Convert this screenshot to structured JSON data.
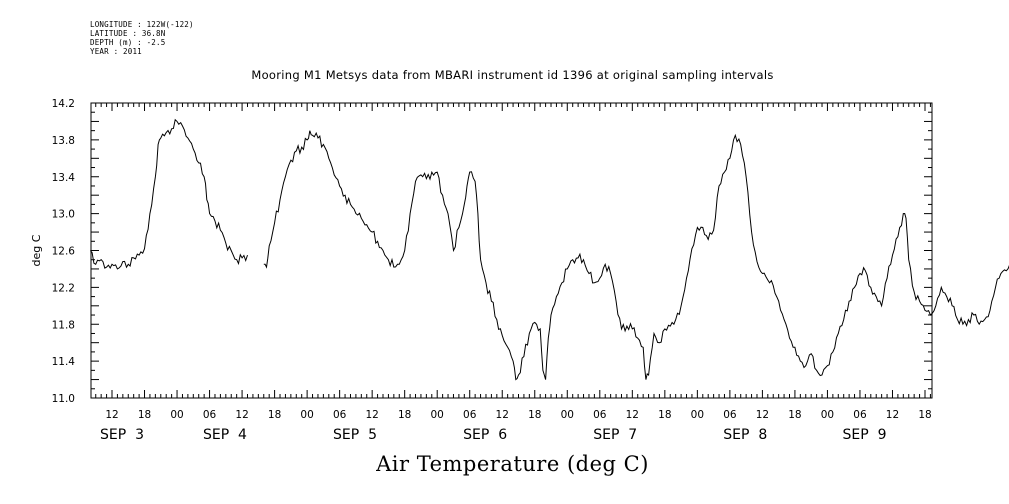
{
  "meta": {
    "longitude": "LONGITUDE : 122W(-122)",
    "latitude": "LATITUDE : 36.8N",
    "depth": "DEPTH (m) : -2.5",
    "year": "YEAR : 2011"
  },
  "chart_data": {
    "type": "line",
    "title": "Mooring M1 Metsys data from MBARI instrument id 1396 at original sampling intervals",
    "xlabel": "Air Temperature (deg C)",
    "ylabel": "deg C",
    "ylim": [
      11.0,
      14.2
    ],
    "xlim_hours": [
      8,
      164
    ],
    "yticks": [
      "11.0",
      "11.4",
      "11.8",
      "12.2",
      "12.6",
      "13.0",
      "13.4",
      "13.8",
      "14.2"
    ],
    "xticks": [
      {
        "hour": 12,
        "label": "12"
      },
      {
        "hour": 18,
        "label": "18"
      },
      {
        "hour": 24,
        "label": "00"
      },
      {
        "hour": 30,
        "label": "06"
      },
      {
        "hour": 36,
        "label": "12"
      },
      {
        "hour": 42,
        "label": "18"
      },
      {
        "hour": 48,
        "label": "00"
      },
      {
        "hour": 54,
        "label": "06"
      },
      {
        "hour": 60,
        "label": "12"
      },
      {
        "hour": 66,
        "label": "18"
      },
      {
        "hour": 72,
        "label": "00"
      },
      {
        "hour": 78,
        "label": "06"
      },
      {
        "hour": 84,
        "label": "12"
      },
      {
        "hour": 90,
        "label": "18"
      },
      {
        "hour": 96,
        "label": "00"
      },
      {
        "hour": 102,
        "label": "06"
      },
      {
        "hour": 108,
        "label": "12"
      },
      {
        "hour": 114,
        "label": "18"
      },
      {
        "hour": 120,
        "label": "00"
      },
      {
        "hour": 126,
        "label": "06"
      },
      {
        "hour": 132,
        "label": "12"
      },
      {
        "hour": 138,
        "label": "18"
      },
      {
        "hour": 144,
        "label": "00"
      },
      {
        "hour": 150,
        "label": "06"
      },
      {
        "hour": 156,
        "label": "12"
      },
      {
        "hour": 162,
        "label": "18"
      }
    ],
    "day_labels": [
      {
        "hour": 12,
        "label": "SEP  3"
      },
      {
        "hour": 31,
        "label": "SEP  4"
      },
      {
        "hour": 55,
        "label": "SEP  5"
      },
      {
        "hour": 79,
        "label": "SEP  6"
      },
      {
        "hour": 103,
        "label": "SEP  7"
      },
      {
        "hour": 127,
        "label": "SEP  8"
      },
      {
        "hour": 149,
        "label": "SEP  9"
      }
    ],
    "series": [
      {
        "color": "#000000",
        "segments": [
          [
            [
              8,
              12.6
            ],
            [
              9,
              12.45
            ],
            [
              10,
              12.5
            ],
            [
              11,
              12.42
            ],
            [
              12,
              12.45
            ],
            [
              13,
              12.4
            ],
            [
              14,
              12.48
            ],
            [
              15,
              12.45
            ],
            [
              16,
              12.52
            ],
            [
              17,
              12.55
            ],
            [
              18,
              12.62
            ],
            [
              19,
              13.0
            ],
            [
              20,
              13.4
            ],
            [
              20.5,
              13.75
            ],
            [
              21,
              13.82
            ],
            [
              22,
              13.88
            ],
            [
              23,
              13.92
            ],
            [
              24,
              14.0
            ],
            [
              25,
              13.95
            ],
            [
              26,
              13.82
            ],
            [
              27,
              13.7
            ],
            [
              28,
              13.55
            ],
            [
              29,
              13.4
            ],
            [
              29.5,
              13.15
            ],
            [
              30,
              13.0
            ],
            [
              31,
              12.92
            ],
            [
              32,
              12.82
            ],
            [
              33,
              12.68
            ],
            [
              34,
              12.6
            ],
            [
              35,
              12.5
            ],
            [
              36,
              12.52
            ],
            [
              37,
              12.55
            ]
          ],
          [
            [
              40,
              12.45
            ],
            [
              40.5,
              12.42
            ],
            [
              41,
              12.65
            ],
            [
              42,
              12.9
            ],
            [
              43,
              13.15
            ],
            [
              44,
              13.4
            ],
            [
              45,
              13.58
            ],
            [
              46,
              13.68
            ],
            [
              47,
              13.72
            ],
            [
              48,
              13.8
            ],
            [
              48.5,
              13.9
            ],
            [
              49,
              13.85
            ],
            [
              50,
              13.82
            ],
            [
              51,
              13.75
            ],
            [
              52,
              13.6
            ],
            [
              53,
              13.42
            ],
            [
              54,
              13.3
            ],
            [
              55,
              13.2
            ],
            [
              56,
              13.1
            ],
            [
              57,
              13.0
            ],
            [
              58,
              12.95
            ],
            [
              59,
              12.88
            ],
            [
              60,
              12.8
            ],
            [
              61,
              12.7
            ],
            [
              62,
              12.6
            ],
            [
              63,
              12.5
            ],
            [
              64,
              12.42
            ],
            [
              65,
              12.45
            ],
            [
              66,
              12.6
            ],
            [
              67,
              13.0
            ],
            [
              68,
              13.35
            ],
            [
              69,
              13.42
            ],
            [
              70,
              13.38
            ],
            [
              71,
              13.45
            ],
            [
              72,
              13.45
            ],
            [
              73,
              13.2
            ],
            [
              74,
              13.0
            ],
            [
              75,
              12.6
            ],
            [
              76,
              12.85
            ],
            [
              77,
              13.1
            ],
            [
              77.5,
              13.3
            ],
            [
              78,
              13.45
            ],
            [
              79,
              13.35
            ],
            [
              79.5,
              13.0
            ],
            [
              80,
              12.5
            ],
            [
              81,
              12.25
            ],
            [
              82,
              12.05
            ],
            [
              83,
              11.85
            ],
            [
              84,
              11.68
            ],
            [
              85,
              11.55
            ],
            [
              86,
              11.4
            ],
            [
              86.5,
              11.2
            ],
            [
              87,
              11.25
            ],
            [
              88,
              11.45
            ],
            [
              89,
              11.7
            ],
            [
              90,
              11.82
            ],
            [
              91,
              11.75
            ],
            [
              91.5,
              11.3
            ],
            [
              92,
              11.2
            ],
            [
              92.5,
              11.65
            ],
            [
              93,
              11.9
            ],
            [
              94,
              12.1
            ],
            [
              95,
              12.25
            ],
            [
              96,
              12.4
            ],
            [
              97,
              12.5
            ],
            [
              98,
              12.52
            ],
            [
              99,
              12.5
            ],
            [
              100,
              12.35
            ],
            [
              101,
              12.25
            ],
            [
              102,
              12.3
            ],
            [
              103,
              12.45
            ],
            [
              104,
              12.35
            ],
            [
              105,
              12.05
            ],
            [
              106,
              11.75
            ],
            [
              107,
              11.78
            ],
            [
              108,
              11.75
            ],
            [
              109,
              11.65
            ],
            [
              110,
              11.55
            ],
            [
              110.5,
              11.2
            ],
            [
              111,
              11.25
            ],
            [
              112,
              11.7
            ],
            [
              113,
              11.6
            ],
            [
              114,
              11.75
            ],
            [
              115,
              11.78
            ],
            [
              116,
              11.85
            ],
            [
              117,
              12.0
            ],
            [
              118,
              12.3
            ],
            [
              119,
              12.62
            ],
            [
              120,
              12.85
            ],
            [
              121,
              12.85
            ],
            [
              122,
              12.72
            ],
            [
              123,
              12.82
            ],
            [
              124,
              13.3
            ],
            [
              125,
              13.45
            ],
            [
              126,
              13.6
            ],
            [
              127,
              13.85
            ],
            [
              128,
              13.75
            ],
            [
              129,
              13.4
            ],
            [
              130,
              12.8
            ],
            [
              131,
              12.48
            ],
            [
              132,
              12.35
            ],
            [
              133,
              12.28
            ],
            [
              134,
              12.22
            ],
            [
              135,
              12.05
            ],
            [
              136,
              11.85
            ],
            [
              137,
              11.65
            ],
            [
              138,
              11.55
            ],
            [
              139,
              11.4
            ],
            [
              140,
              11.35
            ],
            [
              141,
              11.48
            ],
            [
              142,
              11.3
            ],
            [
              143,
              11.25
            ],
            [
              144,
              11.35
            ],
            [
              145,
              11.5
            ],
            [
              146,
              11.7
            ],
            [
              147,
              11.85
            ],
            [
              148,
              12.05
            ],
            [
              149,
              12.2
            ],
            [
              150,
              12.35
            ],
            [
              151,
              12.38
            ],
            [
              152,
              12.2
            ],
            [
              153,
              12.1
            ],
            [
              154,
              12.0
            ],
            [
              155,
              12.3
            ],
            [
              156,
              12.55
            ],
            [
              157,
              12.75
            ],
            [
              158,
              13.0
            ],
            [
              158.5,
              12.95
            ],
            [
              159,
              12.5
            ],
            [
              160,
              12.15
            ],
            [
              161,
              12.05
            ],
            [
              162,
              11.95
            ],
            [
              163,
              11.9
            ],
            [
              164,
              12.0
            ],
            [
              165,
              12.2
            ],
            [
              166,
              12.1
            ],
            [
              167,
              12.0
            ],
            [
              168,
              11.85
            ],
            [
              169,
              11.8
            ],
            [
              170,
              11.85
            ],
            [
              171,
              11.9
            ],
            [
              172,
              11.8
            ],
            [
              173,
              11.85
            ],
            [
              174,
              11.95
            ],
            [
              175,
              12.2
            ],
            [
              176,
              12.35
            ],
            [
              177,
              12.38
            ],
            [
              178,
              12.5
            ]
          ]
        ]
      }
    ]
  }
}
